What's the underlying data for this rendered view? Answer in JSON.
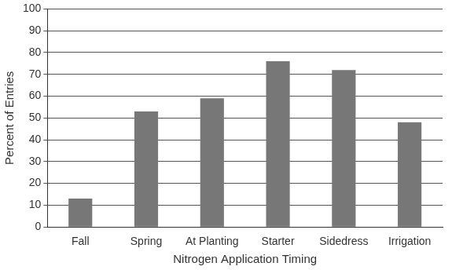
{
  "chart_data": {
    "type": "bar",
    "x_label": "Nitrogen Application Timing",
    "y_label": "Percent of Entries",
    "categories": [
      "Fall",
      "Spring",
      "At Planting",
      "Starter",
      "Sidedress",
      "Irrigation"
    ],
    "values": [
      13,
      53,
      59,
      76,
      72,
      48
    ],
    "color": "#777777",
    "ylim": [
      0,
      100
    ],
    "yticks": [
      0,
      10,
      20,
      30,
      40,
      50,
      60,
      70,
      80,
      90,
      100
    ],
    "grid": true
  }
}
